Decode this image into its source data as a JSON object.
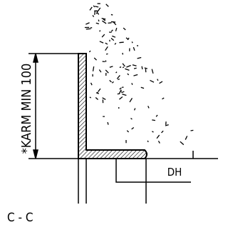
{
  "dimension": {
    "label": "*KARM MIN 100"
  },
  "reference": {
    "label": "DH"
  },
  "section": {
    "label": "C - C"
  }
}
